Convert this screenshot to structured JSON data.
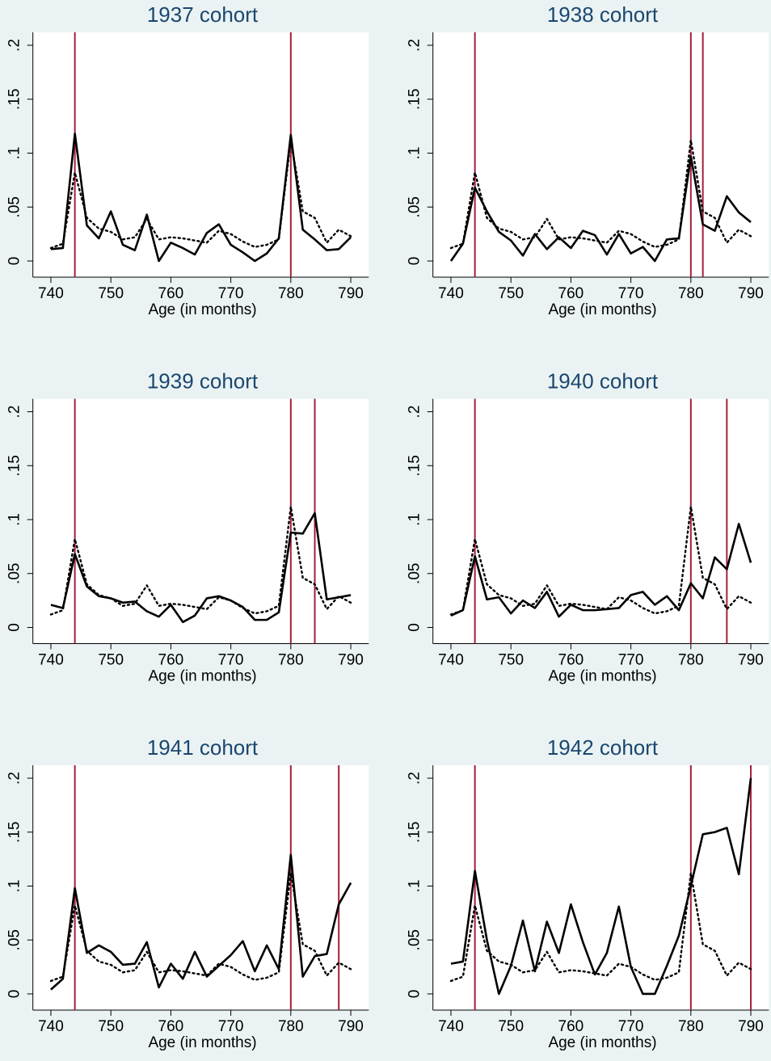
{
  "chart_data": [
    {
      "type": "line",
      "title": "1937 cohort",
      "x_label": "Age (in months)",
      "x": [
        740,
        742,
        744,
        746,
        748,
        750,
        752,
        754,
        756,
        758,
        760,
        762,
        764,
        766,
        768,
        770,
        772,
        774,
        776,
        778,
        780,
        782,
        784,
        786,
        788,
        790
      ],
      "series": [
        {
          "color": "#000000",
          "line_style": "solid",
          "values": [
            0.011,
            0.012,
            0.118,
            0.033,
            0.021,
            0.046,
            0.015,
            0.01,
            0.043,
            0,
            0.017,
            0.012,
            0.006,
            0.026,
            0.034,
            0.015,
            0.008,
            0,
            0.007,
            0.021,
            0.117,
            0.029,
            0.02,
            0.01,
            0.011,
            0.022
          ]
        },
        {
          "color": "#000000",
          "line_style": "dotted",
          "values": [
            0.012,
            0.016,
            0.082,
            0.04,
            0.03,
            0.027,
            0.02,
            0.022,
            0.039,
            0.02,
            0.022,
            0.021,
            0.019,
            0.017,
            0.028,
            0.025,
            0.018,
            0.013,
            0.015,
            0.02,
            0.112,
            0.046,
            0.04,
            0.017,
            0.029,
            0.023
          ]
        }
      ],
      "vlines": [
        744,
        780
      ],
      "vline_color": "#a3203a",
      "xlim": [
        737,
        793
      ],
      "ylim": [
        -0.015,
        0.212
      ],
      "xticks": [
        740,
        750,
        760,
        770,
        780,
        790
      ],
      "yticks": [
        0,
        {
          "value": 0.05,
          "label": ".05"
        },
        {
          "value": 0.1,
          "label": ".1"
        },
        {
          "value": 0.15,
          "label": ".15"
        },
        {
          "value": 0.2,
          "label": ".2"
        }
      ]
    },
    {
      "type": "line",
      "title": "1938 cohort",
      "x_label": "Age (in months)",
      "x": [
        740,
        742,
        744,
        746,
        748,
        750,
        752,
        754,
        756,
        758,
        760,
        762,
        764,
        766,
        768,
        770,
        772,
        774,
        776,
        778,
        780,
        782,
        784,
        786,
        788,
        790
      ],
      "series": [
        {
          "color": "#000000",
          "line_style": "solid",
          "values": [
            0,
            0.016,
            0.068,
            0.046,
            0.027,
            0.019,
            0.005,
            0.025,
            0.011,
            0.022,
            0.012,
            0.028,
            0.024,
            0.006,
            0.025,
            0.007,
            0.013,
            0,
            0.02,
            0.021,
            0.097,
            0.034,
            0.028,
            0.06,
            0.045,
            0.036
          ]
        },
        {
          "color": "#000000",
          "line_style": "dotted",
          "values": [
            0.012,
            0.016,
            0.082,
            0.04,
            0.03,
            0.027,
            0.02,
            0.022,
            0.039,
            0.02,
            0.022,
            0.021,
            0.019,
            0.017,
            0.028,
            0.025,
            0.018,
            0.013,
            0.015,
            0.02,
            0.112,
            0.046,
            0.04,
            0.017,
            0.029,
            0.023
          ]
        }
      ],
      "vlines": [
        744,
        780,
        782
      ],
      "vline_color": "#a3203a",
      "xlim": [
        737,
        793
      ],
      "ylim": [
        -0.015,
        0.212
      ],
      "xticks": [
        740,
        750,
        760,
        770,
        780,
        790
      ],
      "yticks": [
        0,
        {
          "value": 0.05,
          "label": ".05"
        },
        {
          "value": 0.1,
          "label": ".1"
        },
        {
          "value": 0.15,
          "label": ".15"
        },
        {
          "value": 0.2,
          "label": ".2"
        }
      ]
    },
    {
      "type": "line",
      "title": "1939 cohort",
      "x_label": "Age (in months)",
      "x": [
        740,
        742,
        744,
        746,
        748,
        750,
        752,
        754,
        756,
        758,
        760,
        762,
        764,
        766,
        768,
        770,
        772,
        774,
        776,
        778,
        780,
        782,
        784,
        786,
        788,
        790
      ],
      "series": [
        {
          "color": "#000000",
          "line_style": "solid",
          "values": [
            0.021,
            0.018,
            0.068,
            0.038,
            0.029,
            0.027,
            0.023,
            0.024,
            0.015,
            0.01,
            0.021,
            0.005,
            0.011,
            0.027,
            0.029,
            0.025,
            0.019,
            0.007,
            0.007,
            0.014,
            0.088,
            0.087,
            0.106,
            0.026,
            0.028,
            0.03
          ]
        },
        {
          "color": "#000000",
          "line_style": "dotted",
          "values": [
            0.012,
            0.016,
            0.082,
            0.04,
            0.03,
            0.027,
            0.02,
            0.022,
            0.039,
            0.02,
            0.022,
            0.021,
            0.019,
            0.017,
            0.028,
            0.025,
            0.018,
            0.013,
            0.015,
            0.02,
            0.112,
            0.046,
            0.04,
            0.017,
            0.029,
            0.023
          ]
        }
      ],
      "vlines": [
        744,
        780,
        784
      ],
      "vline_color": "#a3203a",
      "xlim": [
        737,
        793
      ],
      "ylim": [
        -0.015,
        0.212
      ],
      "xticks": [
        740,
        750,
        760,
        770,
        780,
        790
      ],
      "yticks": [
        0,
        {
          "value": 0.05,
          "label": ".05"
        },
        {
          "value": 0.1,
          "label": ".1"
        },
        {
          "value": 0.15,
          "label": ".15"
        },
        {
          "value": 0.2,
          "label": ".2"
        }
      ]
    },
    {
      "type": "line",
      "title": "1940 cohort",
      "x_label": "Age (in months)",
      "x": [
        740,
        742,
        744,
        746,
        748,
        750,
        752,
        754,
        756,
        758,
        760,
        762,
        764,
        766,
        768,
        770,
        772,
        774,
        776,
        778,
        780,
        782,
        784,
        786,
        788,
        790
      ],
      "series": [
        {
          "color": "#000000",
          "line_style": "solid",
          "values": [
            0.011,
            0.016,
            0.066,
            0.026,
            0.028,
            0.013,
            0.025,
            0.018,
            0.033,
            0.01,
            0.021,
            0.016,
            0.016,
            0.017,
            0.018,
            0.03,
            0.033,
            0.021,
            0.029,
            0.016,
            0.041,
            0.027,
            0.065,
            0.054,
            0.096,
            0.06
          ]
        },
        {
          "color": "#000000",
          "line_style": "dotted",
          "values": [
            0.012,
            0.016,
            0.082,
            0.04,
            0.03,
            0.027,
            0.02,
            0.022,
            0.039,
            0.02,
            0.022,
            0.021,
            0.019,
            0.017,
            0.028,
            0.025,
            0.018,
            0.013,
            0.015,
            0.02,
            0.112,
            0.046,
            0.04,
            0.017,
            0.029,
            0.023
          ]
        }
      ],
      "vlines": [
        744,
        780,
        786
      ],
      "vline_color": "#a3203a",
      "xlim": [
        737,
        793
      ],
      "ylim": [
        -0.015,
        0.212
      ],
      "xticks": [
        740,
        750,
        760,
        770,
        780,
        790
      ],
      "yticks": [
        0,
        {
          "value": 0.05,
          "label": ".05"
        },
        {
          "value": 0.1,
          "label": ".1"
        },
        {
          "value": 0.15,
          "label": ".15"
        },
        {
          "value": 0.2,
          "label": ".2"
        }
      ]
    },
    {
      "type": "line",
      "title": "1941 cohort",
      "x_label": "Age (in months)",
      "x": [
        740,
        742,
        744,
        746,
        748,
        750,
        752,
        754,
        756,
        758,
        760,
        762,
        764,
        766,
        768,
        770,
        772,
        774,
        776,
        778,
        780,
        782,
        784,
        786,
        788,
        790
      ],
      "series": [
        {
          "color": "#000000",
          "line_style": "solid",
          "values": [
            0.004,
            0.014,
            0.098,
            0.038,
            0.045,
            0.039,
            0.027,
            0.028,
            0.048,
            0.006,
            0.028,
            0.014,
            0.039,
            0.016,
            0.026,
            0.036,
            0.049,
            0.021,
            0.045,
            0.023,
            0.129,
            0.016,
            0.035,
            0.037,
            0.083,
            0.103
          ]
        },
        {
          "color": "#000000",
          "line_style": "dotted",
          "values": [
            0.012,
            0.016,
            0.082,
            0.04,
            0.03,
            0.027,
            0.02,
            0.022,
            0.039,
            0.02,
            0.022,
            0.021,
            0.019,
            0.017,
            0.028,
            0.025,
            0.018,
            0.013,
            0.015,
            0.02,
            0.112,
            0.046,
            0.04,
            0.017,
            0.029,
            0.023
          ]
        }
      ],
      "vlines": [
        744,
        780,
        788
      ],
      "vline_color": "#a3203a",
      "xlim": [
        737,
        793
      ],
      "ylim": [
        -0.015,
        0.212
      ],
      "xticks": [
        740,
        750,
        760,
        770,
        780,
        790
      ],
      "yticks": [
        0,
        {
          "value": 0.05,
          "label": ".05"
        },
        {
          "value": 0.1,
          "label": ".1"
        },
        {
          "value": 0.15,
          "label": ".15"
        },
        {
          "value": 0.2,
          "label": ".2"
        }
      ]
    },
    {
      "type": "line",
      "title": "1942 cohort",
      "x_label": "Age (in months)",
      "x": [
        740,
        742,
        744,
        746,
        748,
        750,
        752,
        754,
        756,
        758,
        760,
        762,
        764,
        766,
        768,
        770,
        772,
        774,
        776,
        778,
        780,
        782,
        784,
        786,
        788,
        790
      ],
      "series": [
        {
          "color": "#000000",
          "line_style": "solid",
          "values": [
            0.028,
            0.03,
            0.114,
            0.05,
            0,
            0.026,
            0.068,
            0.021,
            0.067,
            0.038,
            0.083,
            0.048,
            0.018,
            0.038,
            0.081,
            0.025,
            0,
            0,
            0.026,
            0.054,
            0.1,
            0.148,
            0.15,
            0.154,
            0.111,
            0.2
          ]
        },
        {
          "color": "#000000",
          "line_style": "dotted",
          "values": [
            0.012,
            0.016,
            0.082,
            0.04,
            0.03,
            0.027,
            0.02,
            0.022,
            0.039,
            0.02,
            0.022,
            0.021,
            0.019,
            0.017,
            0.028,
            0.025,
            0.018,
            0.013,
            0.015,
            0.02,
            0.112,
            0.046,
            0.04,
            0.017,
            0.029,
            0.023
          ]
        }
      ],
      "vlines": [
        744,
        780,
        790
      ],
      "vline_color": "#a3203a",
      "xlim": [
        737,
        793
      ],
      "ylim": [
        -0.015,
        0.212
      ],
      "xticks": [
        740,
        750,
        760,
        770,
        780,
        790
      ],
      "yticks": [
        0,
        {
          "value": 0.05,
          "label": ".05"
        },
        {
          "value": 0.1,
          "label": ".1"
        },
        {
          "value": 0.15,
          "label": ".15"
        },
        {
          "value": 0.2,
          "label": ".2"
        }
      ]
    }
  ]
}
